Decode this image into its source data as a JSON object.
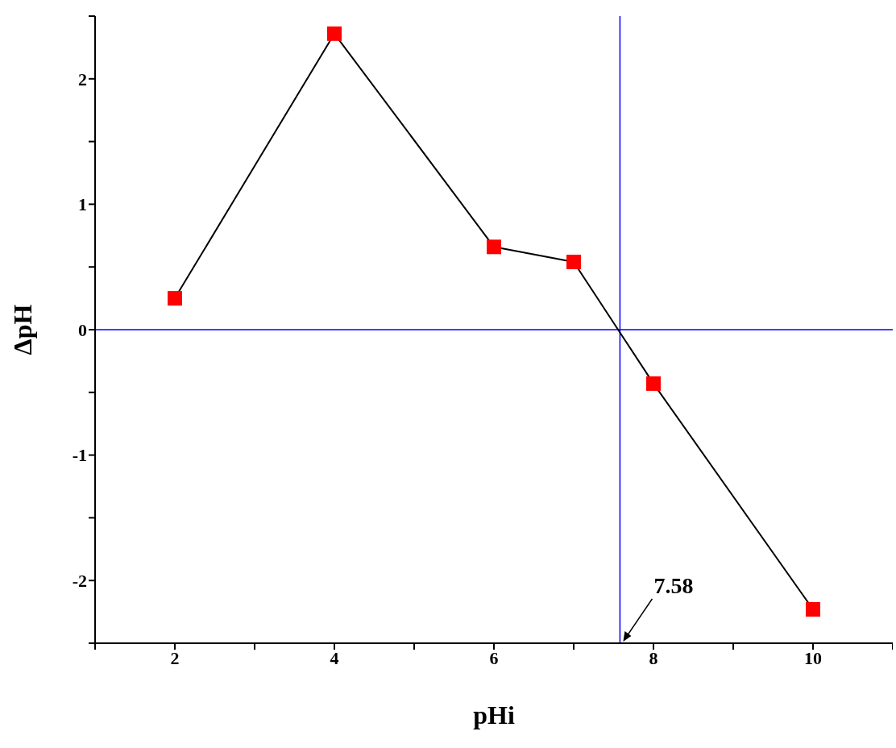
{
  "chart_data": {
    "type": "line",
    "xlabel": "pHi",
    "ylabel": "ΔpH",
    "x": [
      2,
      4,
      6,
      7,
      8,
      10
    ],
    "series": [
      {
        "color": "#ff0000",
        "values": [
          0.25,
          2.36,
          0.66,
          0.54,
          -0.43,
          -2.23
        ]
      }
    ],
    "marker": "square",
    "line_style": "solid",
    "xlim": [
      1,
      11
    ],
    "xticks": [
      {
        "value": 1,
        "label": null
      },
      2,
      {
        "value": 3,
        "label": null
      },
      4,
      {
        "value": 5,
        "label": null
      },
      6,
      {
        "value": 7,
        "label": null
      },
      8,
      {
        "value": 9,
        "label": null
      },
      10,
      {
        "value": 11,
        "label": null
      }
    ],
    "ylim": [
      -2.5,
      2.5
    ],
    "yticks": [
      {
        "value": -2.5,
        "label": null
      },
      -2,
      {
        "value": -1.5,
        "label": null
      },
      -1,
      {
        "value": -0.5,
        "label": null
      },
      0,
      {
        "value": 0.5,
        "label": null
      },
      1,
      {
        "value": 1.5,
        "label": null
      },
      2,
      {
        "value": 2.5,
        "label": null
      }
    ],
    "ref_lines": [
      {
        "axis": "x",
        "value": 7.58,
        "color": "#0000ff"
      },
      {
        "axis": "y",
        "value": 0,
        "color": "#0000ff"
      }
    ],
    "annotations": [
      {
        "text": "7.58",
        "x": 7.58,
        "y": -2.5
      }
    ]
  }
}
